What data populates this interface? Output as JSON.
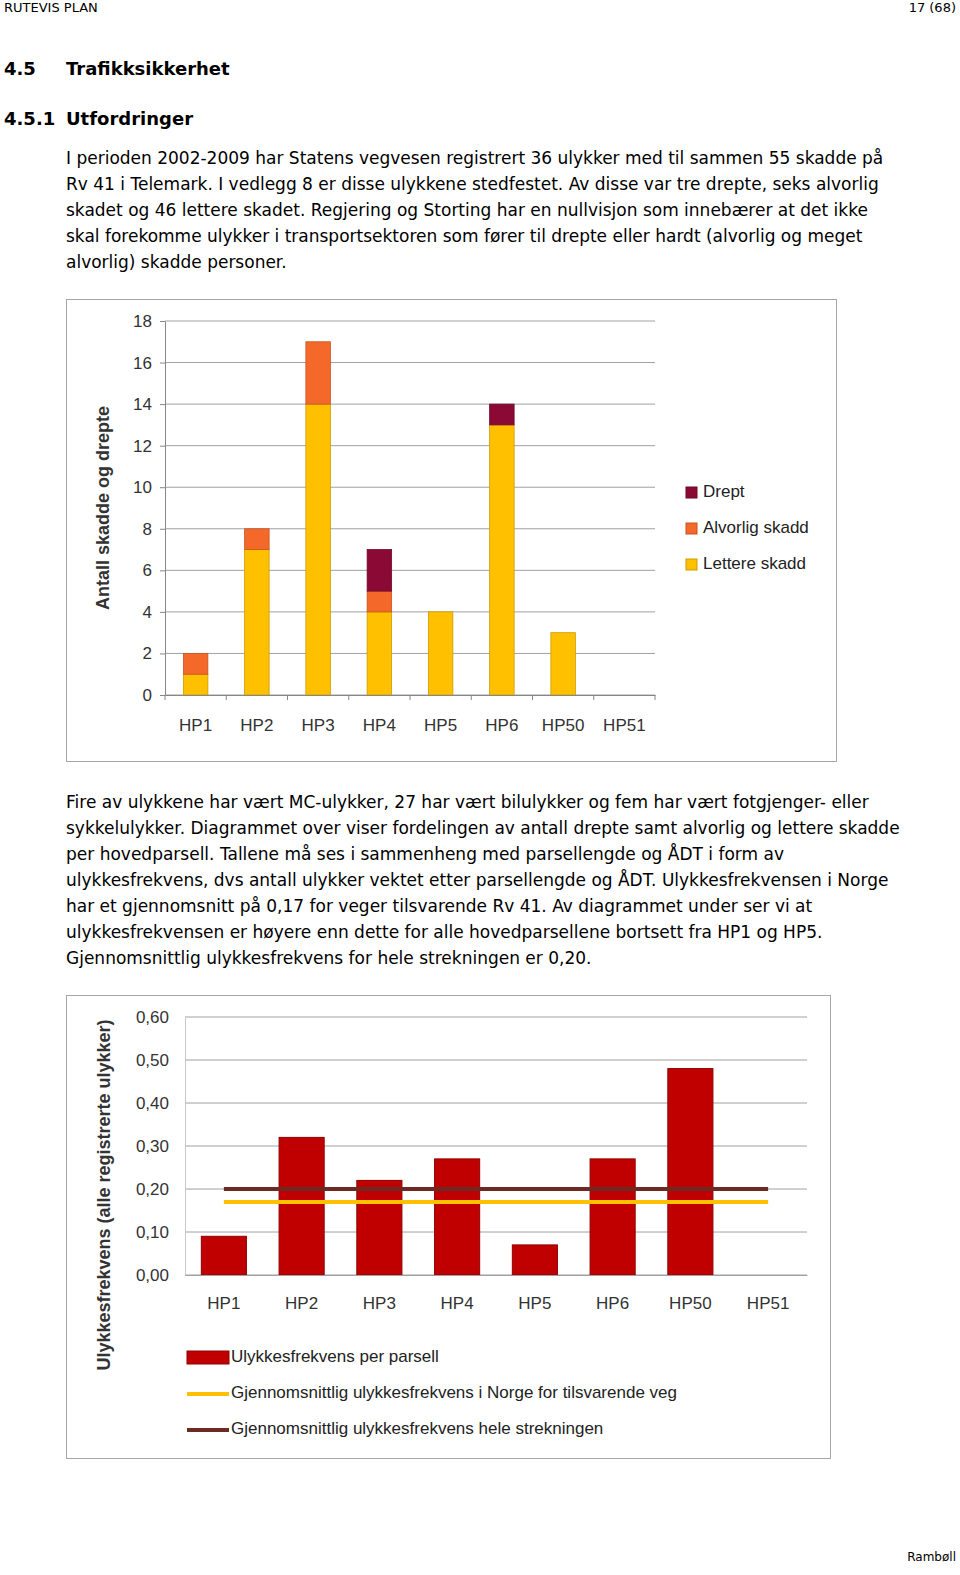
{
  "header": {
    "left": "RUTEVIS PLAN",
    "right": "17 (68)"
  },
  "sections": [
    {
      "number": "4.5",
      "title": "Trafikksikkerhet"
    },
    {
      "number": "4.5.1",
      "title": "Utfordringer"
    }
  ],
  "paragraphs": [
    [
      "I perioden 2002-2009 har Statens vegvesen registrert 36 ulykker med til sammen 55 skadde på",
      "Rv 41 i Telemark. I vedlegg 8 er disse ulykkene stedfestet. Av disse var tre drepte, seks alvorlig",
      "skadet og 46 lettere skadet. Regjering og Storting har en nullvisjon som innebærer at det ikke",
      "skal forekomme ulykker i transportsektoren som fører til drepte eller hardt (alvorlig og meget",
      "alvorlig) skadde personer."
    ],
    [
      "Fire av ulykkene har vært MC-ulykker, 27 har vært bilulykker og fem har vært fotgjenger- eller",
      "sykkelulykker. Diagrammet over viser fordelingen av antall drepte samt alvorlig og lettere skadde",
      "per hovedparsell. Tallene må ses i sammenheng med parsellengde og ÅDT i form av",
      "ulykkesfrekvens, dvs antall ulykker vektet etter parsellengde og ÅDT. Ulykkesfrekvensen i Norge",
      "har et gjennomsnitt på 0,17 for veger tilsvarende Rv 41. Av diagrammet under ser vi at",
      "ulykkesfrekvensen er høyere enn dette for alle hovedparsellene bortsett fra HP1 og HP5.",
      "Gjennomsnittlig ulykkesfrekvens for hele strekningen er 0,20."
    ]
  ],
  "chart_data": [
    {
      "type": "bar",
      "stacked": true,
      "y_label": "Antall skadde og drepte",
      "categories": [
        "HP1",
        "HP2",
        "HP3",
        "HP4",
        "HP5",
        "HP6",
        "HP50",
        "HP51"
      ],
      "series": [
        {
          "name": "Lettere skadd",
          "color": "#ffc000",
          "values": [
            1,
            7,
            14,
            4,
            4,
            13,
            3,
            0
          ]
        },
        {
          "name": "Alvorlig skadd",
          "color": "#f4692a",
          "values": [
            1,
            1,
            3,
            1,
            0,
            0,
            0,
            0
          ]
        },
        {
          "name": "Drept",
          "color": "#8b0a35",
          "values": [
            0,
            0,
            0,
            2,
            0,
            1,
            0,
            0
          ]
        }
      ],
      "ylim": [
        0,
        18
      ],
      "yticks": [
        0,
        2,
        4,
        6,
        8,
        10,
        12,
        14,
        16,
        18
      ],
      "grid": true,
      "legend": "right"
    },
    {
      "type": "bar",
      "y_label": "Ulykkesfrekvens (alle registrerte ulykker)",
      "categories": [
        "HP1",
        "HP2",
        "HP3",
        "HP4",
        "HP5",
        "HP6",
        "HP50",
        "HP51"
      ],
      "series": [
        {
          "name": "Ulykkesfrekvens per parsell",
          "type": "bar",
          "color": "#c00000",
          "values": [
            0.09,
            0.32,
            0.22,
            0.27,
            0.07,
            0.27,
            0.48,
            null
          ]
        },
        {
          "name": "Gjennomsnittlig ulykkesfrekvens i Norge for tilsvarende veg",
          "type": "line",
          "color": "#ffc000",
          "values": [
            0.17,
            0.17,
            0.17,
            0.17,
            0.17,
            0.17,
            0.17,
            0.17
          ]
        },
        {
          "name": "Gjennomsnittlig ulykkesfrekvens hele strekningen",
          "type": "line",
          "color": "#6b2a22",
          "values": [
            0.2,
            0.2,
            0.2,
            0.2,
            0.2,
            0.2,
            0.2,
            0.2
          ]
        }
      ],
      "ylim": [
        0,
        0.6
      ],
      "yticks": [
        {
          "value": 0,
          "label": "0,00"
        },
        {
          "value": 0.1,
          "label": "0,10"
        },
        {
          "value": 0.2,
          "label": "0,20"
        },
        {
          "value": 0.3,
          "label": "0,30"
        },
        {
          "value": 0.4,
          "label": "0,40"
        },
        {
          "value": 0.5,
          "label": "0,50"
        },
        {
          "value": 0.6,
          "label": "0,60"
        }
      ],
      "grid": true,
      "legend": "bottom"
    }
  ],
  "footer": "Rambøll"
}
